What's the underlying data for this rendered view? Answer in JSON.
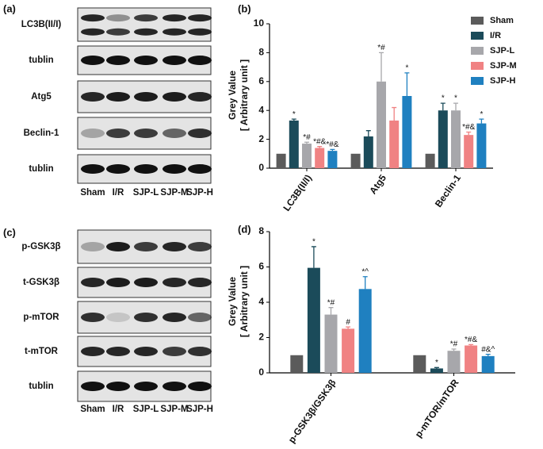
{
  "blots": [
    {
      "panel": "(a)",
      "rows": [
        "LC3B(II/I)",
        "tublin",
        "Atg5",
        "Beclin-1",
        "tublin"
      ],
      "lanes": [
        "Sham",
        "I/R",
        "SJP-L",
        "SJP-M",
        "SJP-H"
      ]
    },
    {
      "panel": "(c)",
      "rows": [
        "p-GSK3β",
        "t-GSK3β",
        "p-mTOR",
        "t-mTOR",
        "tublin"
      ],
      "lanes": [
        "Sham",
        "I/R",
        "SJP-L",
        "SJP-M",
        "SJP-H"
      ]
    }
  ],
  "chart_data": [
    {
      "type": "bar",
      "panel": "(b)",
      "ylabel": [
        "Grey Value",
        "[ Arbitrary unit ]"
      ],
      "categories": [
        "LC3B(II/I)",
        "Atg5",
        "Beclin-1"
      ],
      "ylim": [
        0,
        10
      ],
      "yticks": [
        0,
        2,
        4,
        6,
        8,
        10
      ],
      "legend": "top-right",
      "series": [
        {
          "name": "Sham",
          "color": "#5b5b5b",
          "values": [
            1,
            1,
            1
          ],
          "errors": [
            0,
            0,
            0
          ],
          "annotations": [
            null,
            null,
            null
          ]
        },
        {
          "name": "I/R",
          "color": "#1b4b5a",
          "values": [
            3.3,
            2.2,
            4.0
          ],
          "errors": [
            0.1,
            0.4,
            0.5
          ],
          "annotations": [
            "*",
            null,
            "*"
          ]
        },
        {
          "name": "SJP-L",
          "color": "#a7a7ab",
          "values": [
            1.7,
            6.0,
            4.0
          ],
          "errors": [
            0.1,
            2.0,
            0.5
          ],
          "annotations": [
            "*#",
            "*#",
            "*"
          ]
        },
        {
          "name": "SJP-M",
          "color": "#f08283",
          "values": [
            1.4,
            3.3,
            2.3
          ],
          "errors": [
            0.1,
            0.9,
            0.2
          ],
          "annotations": [
            "*#&",
            null,
            "*#&"
          ]
        },
        {
          "name": "SJP-H",
          "color": "#1f80c0",
          "values": [
            1.2,
            5.0,
            3.1
          ],
          "errors": [
            0.1,
            1.6,
            0.3
          ],
          "annotations": [
            "*#&",
            "*",
            "*"
          ]
        }
      ]
    },
    {
      "type": "bar",
      "panel": "(d)",
      "ylabel": [
        "Grey Value",
        "[ Arbitrary unit ]"
      ],
      "categories": [
        "p-GSK3β/GSK3β",
        "p-mTOR/mTOR"
      ],
      "ylim": [
        0,
        8
      ],
      "yticks": [
        0,
        2,
        4,
        6,
        8
      ],
      "series": [
        {
          "name": "Sham",
          "color": "#5b5b5b",
          "values": [
            1,
            1
          ],
          "errors": [
            0,
            0
          ],
          "annotations": [
            null,
            null
          ]
        },
        {
          "name": "I/R",
          "color": "#1b4b5a",
          "values": [
            5.95,
            0.25
          ],
          "errors": [
            1.2,
            0.05
          ],
          "annotations": [
            "*",
            "*"
          ]
        },
        {
          "name": "SJP-L",
          "color": "#a7a7ab",
          "values": [
            3.3,
            1.25
          ],
          "errors": [
            0.4,
            0.1
          ],
          "annotations": [
            "*#",
            "*#"
          ]
        },
        {
          "name": "SJP-M",
          "color": "#f08283",
          "values": [
            2.5,
            1.55
          ],
          "errors": [
            0.1,
            0.05
          ],
          "annotations": [
            "#",
            "*#&"
          ]
        },
        {
          "name": "SJP-H",
          "color": "#1f80c0",
          "values": [
            4.75,
            0.95
          ],
          "errors": [
            0.7,
            0.1
          ],
          "annotations": [
            "*^",
            "#&^"
          ]
        }
      ]
    }
  ]
}
